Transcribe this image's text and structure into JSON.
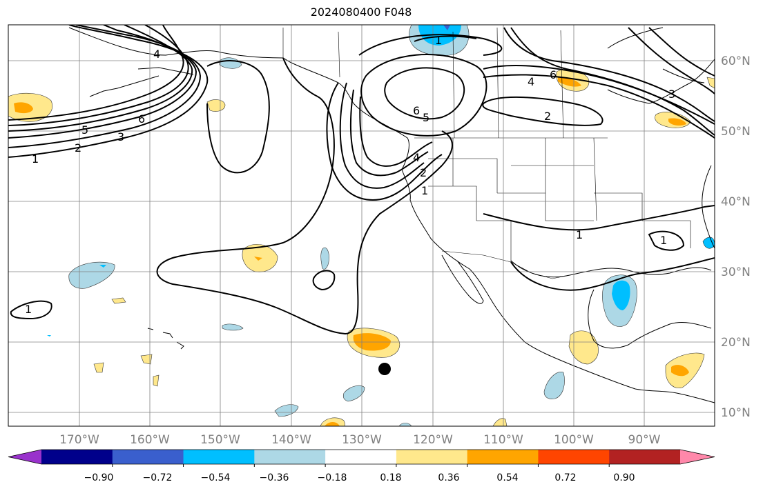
{
  "title": "2024080400 F048",
  "lon_labels": [
    "170°W",
    "160°W",
    "150°W",
    "140°W",
    "130°W",
    "120°W",
    "110°W",
    "100°W",
    "90°W"
  ],
  "lat_labels": [
    "60°N",
    "50°N",
    "40°N",
    "30°N",
    "20°N",
    "10°N"
  ],
  "colorbar": {
    "colors": [
      "#9932cc",
      "#00008b",
      "#3a5fcd",
      "#00bfff",
      "#add8e6",
      "#ffffff",
      "#ffe88c",
      "#ffa500",
      "#ff4500",
      "#b22222",
      "#ff88aa"
    ],
    "tick_labels": [
      "−0.90",
      "−0.72",
      "−0.54",
      "−0.36",
      "−0.18",
      "0.18",
      "0.36",
      "0.54",
      "0.72",
      "0.90"
    ]
  },
  "contour_labels": {
    "w1": "1",
    "w2": "2",
    "w3": "3",
    "w5": "5",
    "w6": "6",
    "w4": "4",
    "c1": "1",
    "c2": "2",
    "c4": "4",
    "c5": "5",
    "c6": "6",
    "e2": "2",
    "e4": "4",
    "e6": "6",
    "e1": "1",
    "e3": "3",
    "s1": "1",
    "s2": "1",
    "n1": "1"
  }
}
